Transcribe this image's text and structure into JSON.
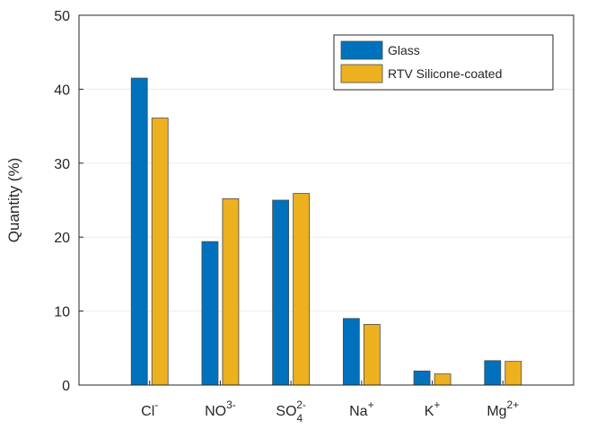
{
  "chart_data": {
    "type": "bar",
    "ylabel": "Quantity (%)",
    "xlabel": "",
    "ylim": [
      0,
      50
    ],
    "yticks": [
      0,
      10,
      20,
      30,
      40,
      50
    ],
    "grid": "horizontal",
    "legend_position": "top-right",
    "categories": [
      {
        "base": "Cl",
        "sup": "-",
        "sub": ""
      },
      {
        "base": "NO",
        "sup": "3-",
        "sub": ""
      },
      {
        "base": "SO",
        "sup": "2-",
        "sub": "4"
      },
      {
        "base": "Na",
        "sup": "+",
        "sub": ""
      },
      {
        "base": "K",
        "sup": "+",
        "sub": ""
      },
      {
        "base": "Mg",
        "sup": "2+",
        "sub": ""
      }
    ],
    "series": [
      {
        "name": "Glass",
        "color": "#0072BD",
        "values": [
          41.5,
          19.4,
          25.0,
          9.0,
          1.9,
          3.3
        ]
      },
      {
        "name": "RTV Silicone-coated",
        "color": "#EDB120",
        "values": [
          36.1,
          25.2,
          25.9,
          8.2,
          1.5,
          3.2
        ]
      }
    ]
  }
}
